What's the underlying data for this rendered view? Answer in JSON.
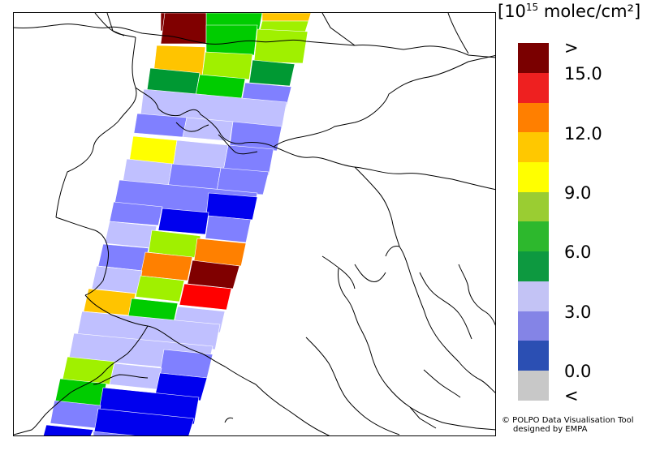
{
  "legend": {
    "unit_prefix": "[10",
    "unit_exp": "15",
    "unit_suffix": " molec/cm²]",
    "colors": [
      "#7a0000",
      "#ee2020",
      "#ff7f00",
      "#ffc800",
      "#ffff00",
      "#9acd32",
      "#2db82d",
      "#0d9940",
      "#c3c3f5",
      "#8484e6",
      "#2b4fb3",
      "#c8c8c8"
    ],
    "ticks": [
      ">",
      "15.0",
      "12.0",
      "9.0",
      "6.0",
      "3.0",
      "0.0",
      "<"
    ]
  },
  "credit": {
    "line1": "© POLPO Data Visualisation Tool",
    "line2": "designed by EMPA"
  },
  "palette": {
    "gt15": "#800000",
    "c15": "#ff0000",
    "c12": "#ff8000",
    "c10": "#ffc400",
    "c9": "#ffff00",
    "c8": "#a0f000",
    "c7": "#00cc00",
    "c6": "#009933",
    "c4": "#c0c0ff",
    "c3": "#8080ff",
    "c1": "#0000ee",
    "border": "#000000"
  }
}
